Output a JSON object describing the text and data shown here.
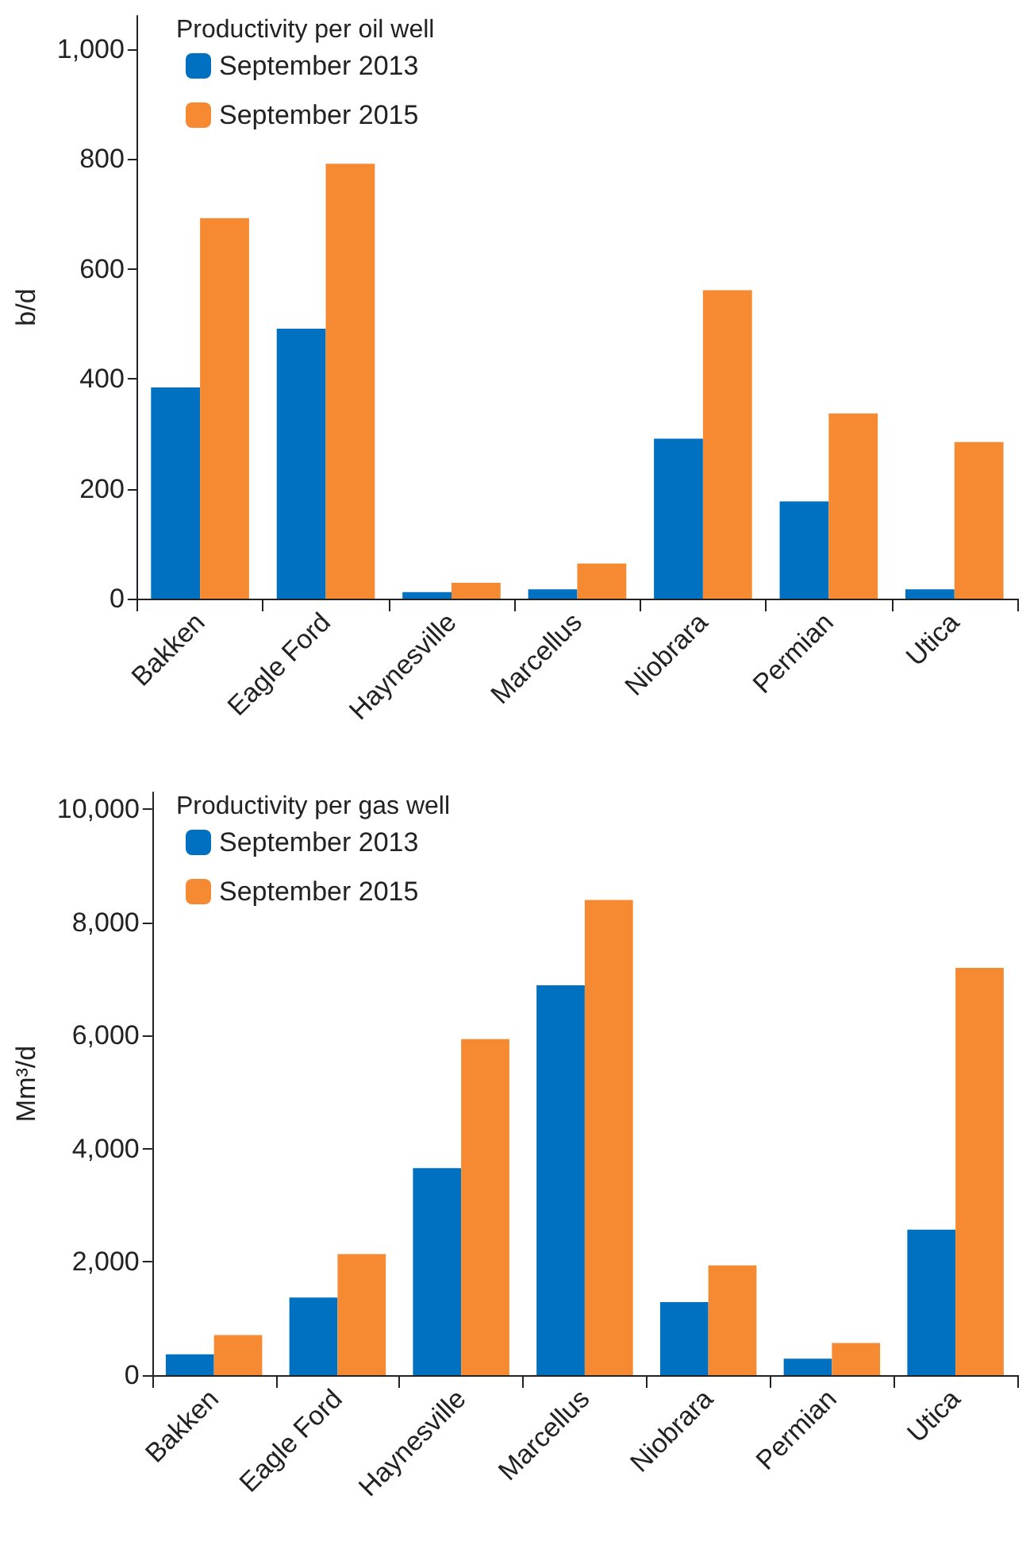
{
  "chart_data": [
    {
      "type": "bar",
      "legend_title": "Productivity per oil well",
      "ylabel": "b/d",
      "categories": [
        "Bakken",
        "Eagle Ford",
        "Haynesville",
        "Marcellus",
        "Niobrara",
        "Permian",
        "Utica"
      ],
      "series": [
        {
          "name": "September 2013",
          "color": "#0070c0",
          "values": [
            384,
            491,
            12,
            17,
            291,
            177,
            17
          ]
        },
        {
          "name": "September 2015",
          "color": "#f58a32",
          "values": [
            692,
            791,
            29,
            64,
            561,
            337,
            285
          ]
        }
      ],
      "ylim": [
        0,
        1060
      ],
      "yticks": [
        0,
        200,
        400,
        600,
        800,
        {
          "value": 1000,
          "label": "1,000"
        }
      ],
      "grid": false,
      "legend": "top left"
    },
    {
      "type": "bar",
      "legend_title": "Productivity per gas well",
      "ylabel": "Mm³/d",
      "categories": [
        "Bakken",
        "Eagle Ford",
        "Haynesville",
        "Marcellus",
        "Niobrara",
        "Permian",
        "Utica"
      ],
      "series": [
        {
          "name": "September 2013",
          "color": "#0070c0",
          "values": [
            370,
            1370,
            3660,
            6890,
            1290,
            290,
            2570
          ]
        },
        {
          "name": "September 2015",
          "color": "#f58a32",
          "values": [
            710,
            2140,
            5940,
            8400,
            1940,
            570,
            7200
          ]
        }
      ],
      "ylim": [
        0,
        10300
      ],
      "yticks": [
        0,
        {
          "value": 2000,
          "label": "2,000"
        },
        {
          "value": 4000,
          "label": "4,000"
        },
        {
          "value": 6000,
          "label": "6,000"
        },
        {
          "value": 8000,
          "label": "8,000"
        },
        {
          "value": 10000,
          "label": "10,000"
        }
      ],
      "grid": false,
      "legend": "top left"
    }
  ]
}
